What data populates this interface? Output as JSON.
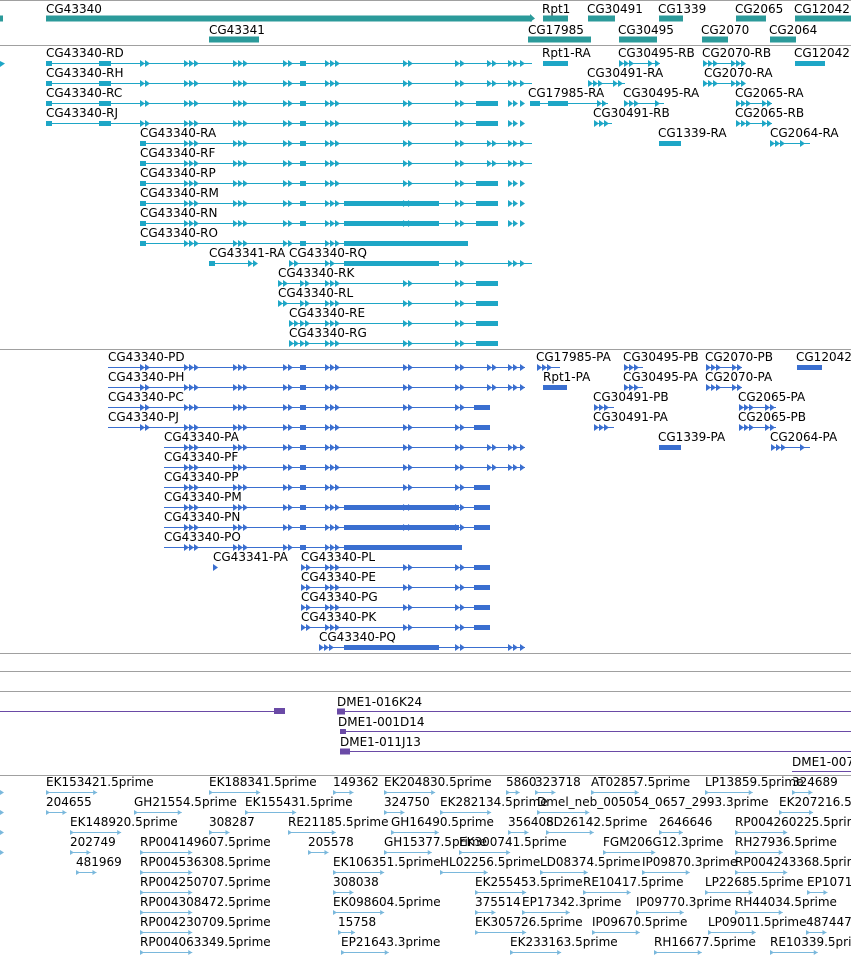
{
  "colors": {
    "gene": "#2b9a9a",
    "mrna": "#1ea6c6",
    "cds": "#3a6fd0",
    "clone": "#6a4aa6",
    "est": "#7ab8dc",
    "separator": "#a0a0a0"
  },
  "genes": [
    "CG43340",
    "Rpt1",
    "CG30491",
    "CG1339",
    "CG2065",
    "CG12042",
    "CG43341",
    "CG17985",
    "CG30495",
    "CG2070",
    "CG2064"
  ],
  "mrnas": [
    "CG43340-RD",
    "Rpt1-RA",
    "CG30495-RB",
    "CG2070-RB",
    "CG12042",
    "CG43340-RH",
    "CG30491-RA",
    "CG2070-RA",
    "CG43340-RC",
    "CG17985-RA",
    "CG30495-RA",
    "CG2065-RA",
    "CG43340-RJ",
    "CG30491-RB",
    "CG2065-RB",
    "CG43340-RA",
    "CG1339-RA",
    "CG2064-RA",
    "CG43340-RF",
    "CG43340-RP",
    "CG43340-RM",
    "CG43340-RN",
    "CG43340-RO",
    "CG43341-RA",
    "CG43340-RQ",
    "CG43340-RK",
    "CG43340-RL",
    "CG43340-RE",
    "CG43340-RG"
  ],
  "proteins": [
    "CG43340-PD",
    "CG17985-PA",
    "CG30495-PB",
    "CG2070-PB",
    "CG12042",
    "CG43340-PH",
    "Rpt1-PA",
    "CG30495-PA",
    "CG2070-PA",
    "CG43340-PC",
    "CG30491-PB",
    "CG2065-PA",
    "CG43340-PJ",
    "CG30491-PA",
    "CG2065-PB",
    "CG43340-PA",
    "CG1339-PA",
    "CG2064-PA",
    "CG43340-PF",
    "CG43340-PP",
    "CG43340-PM",
    "CG43340-PN",
    "CG43340-PO",
    "CG43341-PA",
    "CG43340-PL",
    "CG43340-PE",
    "CG43340-PG",
    "CG43340-PK",
    "CG43340-PQ"
  ],
  "clones": [
    "DME1-016K24",
    "DME1-001D14",
    "DME1-011J13",
    "DME1-007"
  ],
  "ests": [
    "EK153421.5prime",
    "EK188341.5prime",
    "149362",
    "EK204830.5prime",
    "5860",
    "323718",
    "AT02857.5prime",
    "LP13859.5prime",
    "324689",
    "204655",
    "GH21554.5prime",
    "EK155431.5prime",
    "324750",
    "EK282134.5prime",
    "Dmel_neb_005054_0657_2993.3prime",
    "EK207216.5",
    "EK148920.5prime",
    "308287",
    "RE21185.5prime",
    "GH16490.5prime",
    "356408",
    "SD26142.5prime",
    "2646646",
    "RP004260225.5prime",
    "202749",
    "RP004149607.5prime",
    "205578",
    "GH15377.5prime",
    "EK300741.5prime",
    "FGM206G12.3prime",
    "RH27936.5prime",
    "481969",
    "RP004536308.5prime",
    "EK106351.5prime",
    "HL02256.5prime",
    "LD08374.5prime",
    "IP09870.3prime",
    "RP004243368.5prime",
    "RP004250707.5prime",
    "308038",
    "EK255453.5prime",
    "RE10417.5prime",
    "LP22685.5prime",
    "EP1071",
    "RP004308472.5prime",
    "EK098604.5prime",
    "375514",
    "EP17342.3prime",
    "IP09770.3prime",
    "RH44034.5prime",
    "RP004230709.5prime",
    "15758",
    "EK305726.5prime",
    "IP09670.5prime",
    "LP09011.5prime",
    "487447",
    "RP004063349.5prime",
    "EP21643.3prime",
    "EK233163.5prime",
    "RH16677.5prime",
    "RE10339.5prime"
  ]
}
